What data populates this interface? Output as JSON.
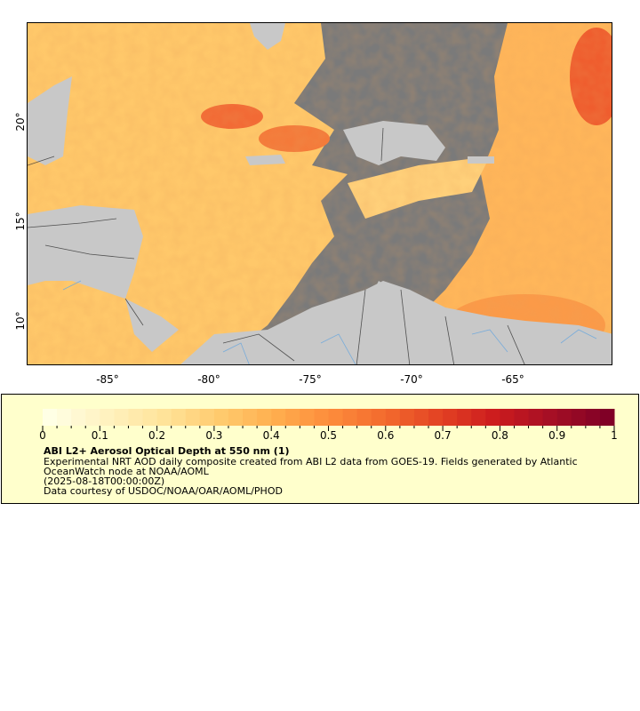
{
  "map": {
    "lon_labels": [
      "-85°",
      "-80°",
      "-75°",
      "-70°",
      "-65°"
    ],
    "lat_labels": [
      "20°",
      "15°",
      "10°"
    ],
    "colors": {
      "no_data": "#7a7a7a",
      "land": "#c8c8c8",
      "border": "#333333",
      "river": "#6fa8dc"
    }
  },
  "legend": {
    "colorbar_min": 0,
    "colorbar_max": 1,
    "tick_labels": [
      "0",
      "0.1",
      "0.2",
      "0.3",
      "0.4",
      "0.5",
      "0.6",
      "0.7",
      "0.8",
      "0.9",
      "1"
    ],
    "palette": [
      "#ffffe5",
      "#fff2c0",
      "#ffe49b",
      "#ffcc70",
      "#ffb04f",
      "#fd8d3c",
      "#f36b2e",
      "#e34223",
      "#cc1b1e",
      "#a50f25",
      "#800026"
    ],
    "title": "ABI L2+ Aerosol Optical Depth at 550 nm (1)",
    "line1": "Experimental NRT AOD daily composite created from ABI L2 data from GOES-19. Fields generated by Atlantic",
    "line2": "OceanWatch node at NOAA/AOML",
    "line3": "(2025-08-18T00:00:00Z)",
    "line4": "Data courtesy of USDOC/NOAA/OAR/AOML/PHOD"
  }
}
